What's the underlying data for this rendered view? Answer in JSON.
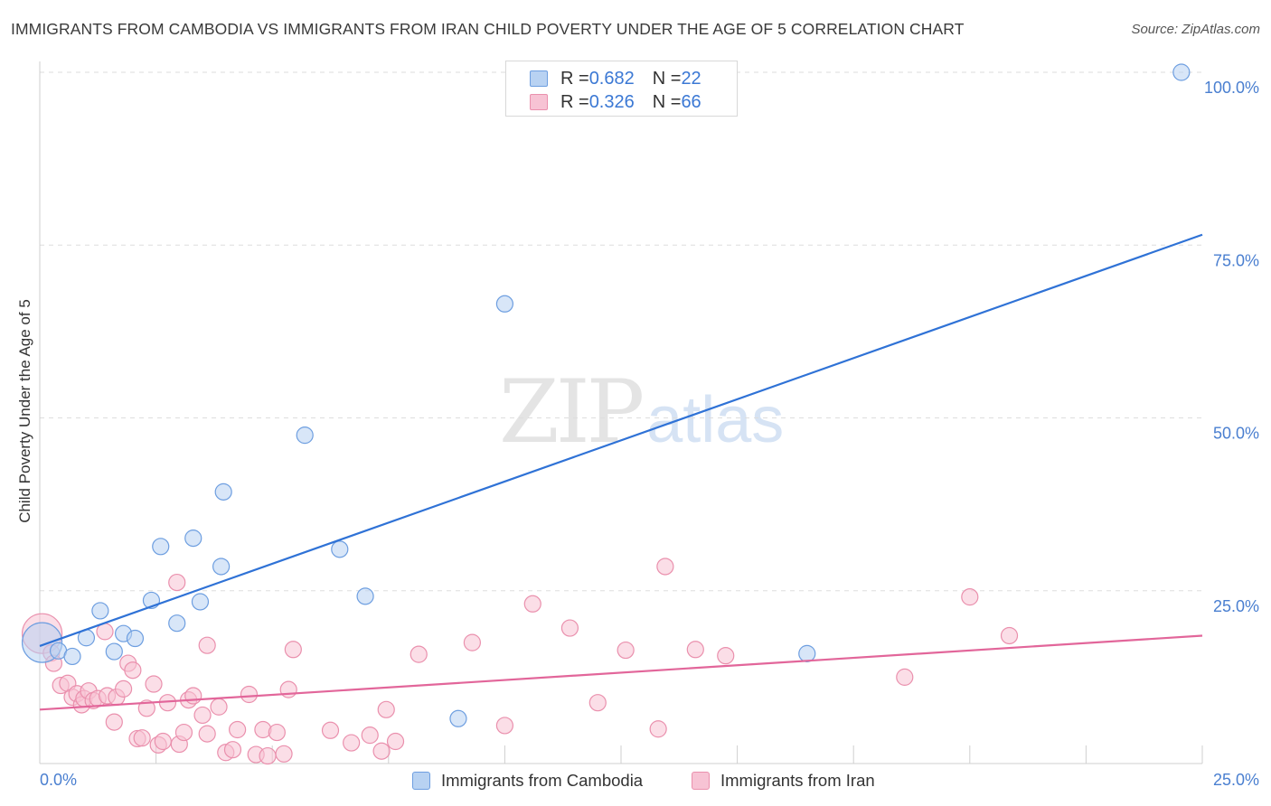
{
  "header": {
    "title": "IMMIGRANTS FROM CAMBODIA VS IMMIGRANTS FROM IRAN CHILD POVERTY UNDER THE AGE OF 5 CORRELATION CHART",
    "source": "Source: ZipAtlas.com"
  },
  "watermark": {
    "zip": "ZIP",
    "atlas": "atlas"
  },
  "colors": {
    "blue_fill": "#b8d2f2",
    "blue_stroke": "#6d9ee0",
    "blue_line": "#2f72d6",
    "pink_fill": "#f7c3d4",
    "pink_stroke": "#ea90ad",
    "pink_line": "#e2669a",
    "tick_text": "#4a7fd0",
    "grid": "#dddddd"
  },
  "legend_top": {
    "rows": [
      {
        "r_label": "R = ",
        "r_value": "0.682",
        "n_label": "N = ",
        "n_value": "22",
        "series": "cambodia"
      },
      {
        "r_label": "R = ",
        "r_value": "0.326",
        "n_label": "N = ",
        "n_value": "66",
        "series": "iran"
      }
    ]
  },
  "chart_data": {
    "type": "scatter",
    "title": "IMMIGRANTS FROM CAMBODIA VS IMMIGRANTS FROM IRAN CHILD POVERTY UNDER THE AGE OF 5 CORRELATION CHART",
    "xlabel": "",
    "ylabel": "Child Poverty Under the Age of 5",
    "xlim": [
      0,
      25
    ],
    "ylim": [
      0,
      100
    ],
    "x_tick_labels": [
      "0.0%",
      "25.0%"
    ],
    "y_ticks": [
      25,
      50,
      75,
      100
    ],
    "y_tick_labels": [
      "25.0%",
      "50.0%",
      "75.0%",
      "100.0%"
    ],
    "grid": true,
    "legend": "top-center, bottom",
    "series": [
      {
        "name": "Immigrants from Cambodia",
        "color": "blue",
        "r": 0.682,
        "n": 22,
        "trend": {
          "x0": 0,
          "y0": 17.0,
          "x1": 25,
          "y1": 76.5
        },
        "points": [
          [
            0.05,
            17.5,
            22
          ],
          [
            0.4,
            16.3,
            9
          ],
          [
            0.7,
            15.5,
            9
          ],
          [
            1.0,
            18.2,
            9
          ],
          [
            1.3,
            22.1,
            9
          ],
          [
            1.6,
            16.2,
            9
          ],
          [
            1.8,
            18.8,
            9
          ],
          [
            2.05,
            18.1,
            9
          ],
          [
            2.4,
            23.6,
            9
          ],
          [
            2.6,
            31.4,
            9
          ],
          [
            2.95,
            20.3,
            9
          ],
          [
            3.3,
            32.6,
            9
          ],
          [
            3.45,
            23.4,
            9
          ],
          [
            3.9,
            28.5,
            9
          ],
          [
            3.95,
            39.3,
            9
          ],
          [
            5.7,
            47.5,
            9
          ],
          [
            6.45,
            31.0,
            9
          ],
          [
            7.0,
            24.2,
            9
          ],
          [
            9.0,
            6.5,
            9
          ],
          [
            10.0,
            66.5,
            9
          ],
          [
            16.5,
            15.9,
            9
          ],
          [
            24.55,
            100.0,
            9
          ]
        ]
      },
      {
        "name": "Immigrants from Iran",
        "color": "pink",
        "r": 0.326,
        "n": 66,
        "trend": {
          "x0": 0,
          "y0": 7.8,
          "x1": 25,
          "y1": 18.5
        },
        "points": [
          [
            0.05,
            18.8,
            22
          ],
          [
            0.25,
            16.0,
            9
          ],
          [
            0.3,
            14.5,
            9
          ],
          [
            0.45,
            11.3,
            9
          ],
          [
            0.6,
            11.6,
            9
          ],
          [
            0.7,
            9.6,
            9
          ],
          [
            0.8,
            10.1,
            9
          ],
          [
            0.9,
            8.5,
            9
          ],
          [
            0.95,
            9.4,
            9
          ],
          [
            1.05,
            10.5,
            9
          ],
          [
            1.15,
            9.1,
            9
          ],
          [
            1.25,
            9.4,
            9
          ],
          [
            1.4,
            19.1,
            9
          ],
          [
            1.45,
            9.8,
            9
          ],
          [
            1.6,
            6.0,
            9
          ],
          [
            1.65,
            9.6,
            9
          ],
          [
            1.8,
            10.8,
            9
          ],
          [
            1.9,
            14.5,
            9
          ],
          [
            2.0,
            13.5,
            9
          ],
          [
            2.1,
            3.6,
            9
          ],
          [
            2.2,
            3.7,
            9
          ],
          [
            2.3,
            8.0,
            9
          ],
          [
            2.45,
            11.5,
            9
          ],
          [
            2.55,
            2.7,
            9
          ],
          [
            2.65,
            3.2,
            9
          ],
          [
            2.75,
            8.8,
            9
          ],
          [
            2.95,
            26.2,
            9
          ],
          [
            3.0,
            2.8,
            9
          ],
          [
            3.1,
            4.5,
            9
          ],
          [
            3.2,
            9.2,
            9
          ],
          [
            3.3,
            9.8,
            9
          ],
          [
            3.5,
            7.0,
            9
          ],
          [
            3.6,
            4.3,
            9
          ],
          [
            3.6,
            17.1,
            9
          ],
          [
            3.85,
            8.2,
            9
          ],
          [
            4.0,
            1.6,
            9
          ],
          [
            4.15,
            2.0,
            9
          ],
          [
            4.25,
            4.9,
            9
          ],
          [
            4.5,
            10.0,
            9
          ],
          [
            4.65,
            1.3,
            9
          ],
          [
            4.8,
            4.9,
            9
          ],
          [
            4.9,
            1.1,
            9
          ],
          [
            5.1,
            4.5,
            9
          ],
          [
            5.25,
            1.4,
            9
          ],
          [
            5.35,
            10.7,
            9
          ],
          [
            5.45,
            16.5,
            9
          ],
          [
            6.25,
            4.8,
            9
          ],
          [
            6.7,
            3.0,
            9
          ],
          [
            7.1,
            4.1,
            9
          ],
          [
            7.35,
            1.8,
            9
          ],
          [
            7.45,
            7.8,
            9
          ],
          [
            7.65,
            3.2,
            9
          ],
          [
            8.15,
            15.8,
            9
          ],
          [
            9.3,
            17.5,
            9
          ],
          [
            10.0,
            5.5,
            9
          ],
          [
            10.6,
            23.1,
            9
          ],
          [
            11.4,
            19.6,
            9
          ],
          [
            12.0,
            8.8,
            9
          ],
          [
            12.6,
            16.4,
            9
          ],
          [
            13.3,
            5.0,
            9
          ],
          [
            13.45,
            28.5,
            9
          ],
          [
            14.1,
            16.5,
            9
          ],
          [
            14.75,
            15.6,
            9
          ],
          [
            18.6,
            12.5,
            9
          ],
          [
            20.0,
            24.1,
            9
          ],
          [
            20.85,
            18.5,
            9
          ]
        ]
      }
    ]
  },
  "bottom_legend": {
    "items": [
      {
        "label": "Immigrants from Cambodia",
        "series": "cambodia"
      },
      {
        "label": "Immigrants from Iran",
        "series": "iran"
      }
    ]
  }
}
